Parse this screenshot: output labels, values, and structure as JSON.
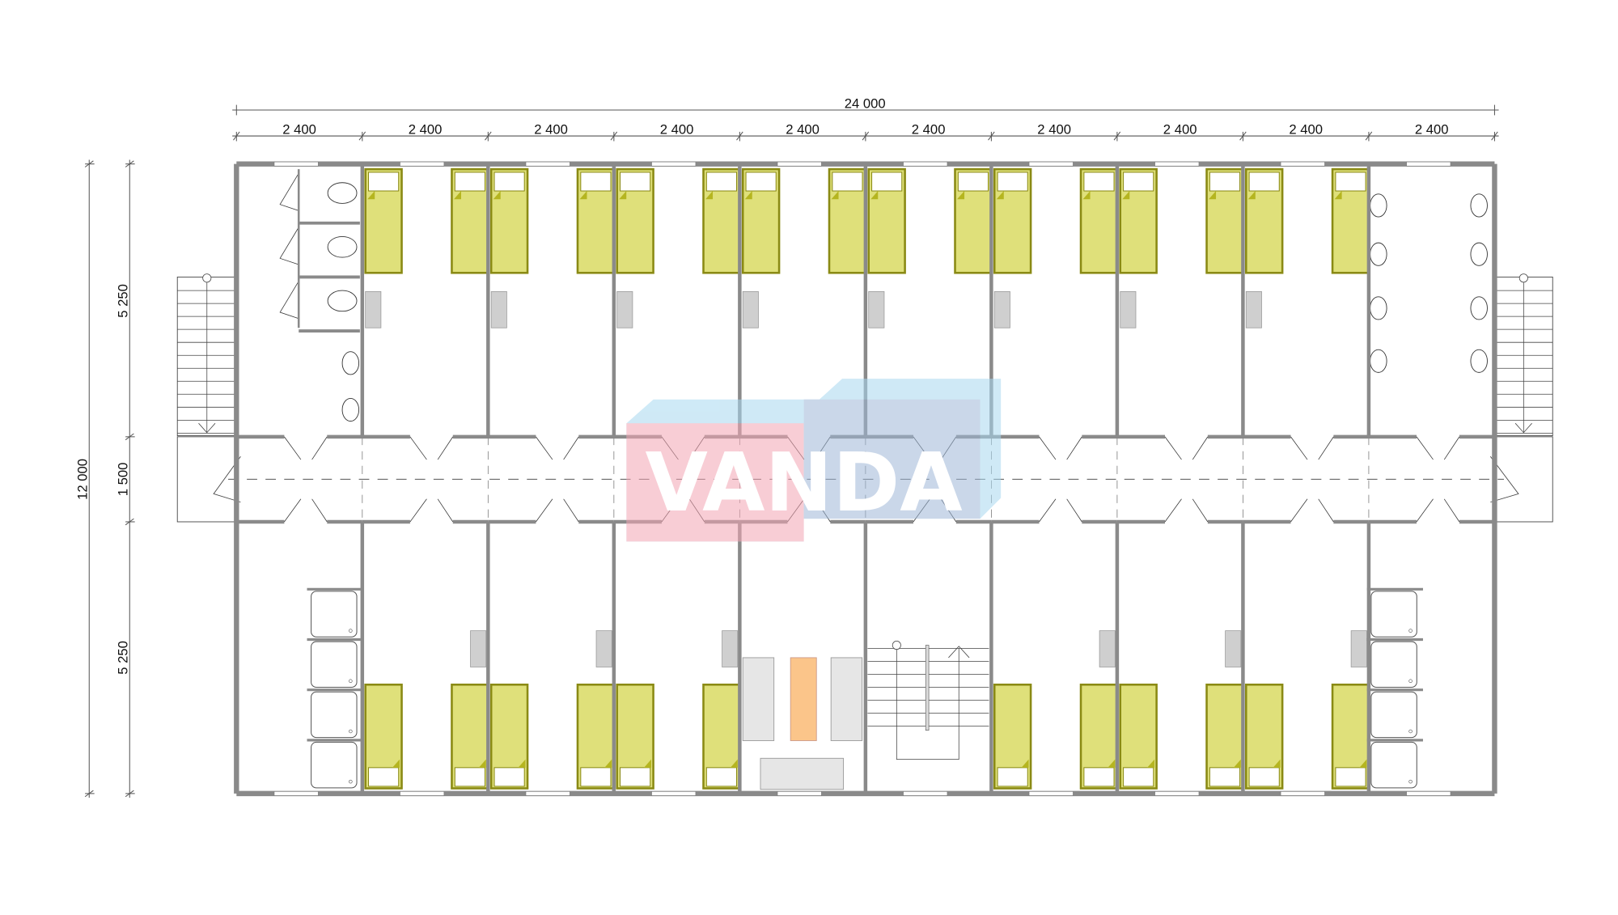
{
  "dimensions": {
    "overall_width": "24 000",
    "module_widths": [
      "2 400",
      "2 400",
      "2 400",
      "2 400",
      "2 400",
      "2 400",
      "2 400",
      "2 400",
      "2 400",
      "2 400"
    ],
    "overall_depth": "12 000",
    "depth_segments": [
      "5 250",
      "1 500",
      "5 250"
    ]
  },
  "plan": {
    "top_rooms": [
      "wc",
      "bedroom",
      "bedroom",
      "bedroom",
      "bedroom",
      "bedroom",
      "bedroom",
      "bedroom",
      "bedroom",
      "washroom"
    ],
    "bottom_rooms": [
      "showers",
      "bedroom",
      "bedroom",
      "bedroom",
      "lounge",
      "stairwell",
      "bedroom",
      "bedroom",
      "bedroom",
      "showers"
    ]
  },
  "colors": {
    "wall": "#8a8a8a",
    "bed": "#dfe07a",
    "bed_border": "#8a8a14",
    "desk": "#cfcfcf",
    "table": "#fbc58a",
    "logo_pink": "#f4a6b4",
    "logo_blue": "#a8d8f0"
  },
  "watermark": {
    "text": "VANDA"
  }
}
